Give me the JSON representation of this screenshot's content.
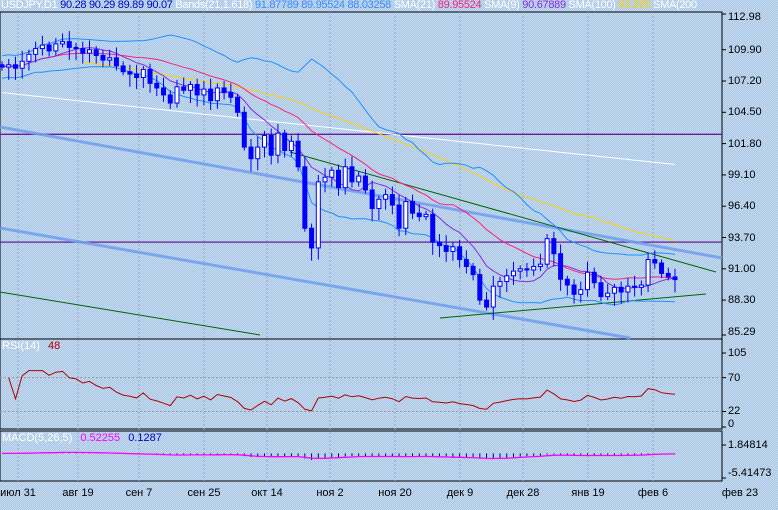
{
  "header": {
    "symbol": "USDJPY,D1",
    "open": "90.28",
    "high": "90.29",
    "low": "89.89",
    "close": "90.07",
    "bands_label": "Bands(21,1.618)",
    "bands_upper": "91.87789",
    "bands_mid": "89.95524",
    "bands_lower": "88.03258",
    "sma21_label": "SMA(21)",
    "sma21_value": "89.95524",
    "sma9_label": "SMA(9)",
    "sma9_value": "90.67889",
    "sma100_label": "SMA(100)",
    "sma100_value": "93.265",
    "sma200_label": "SMA(200"
  },
  "colors": {
    "candle": "#0000ff",
    "sma21": "#ff1f7a",
    "sma9": "#8a2be2",
    "sma100": "#ffd000",
    "sma200": "#ffffff",
    "bands": "#1e90ff",
    "hline": "#6a1a9a",
    "channel": "#6f9ff0",
    "trend": "#006400",
    "rsi": "#b00000",
    "macd": "#ff00ff",
    "hist": "#000080"
  },
  "chart_data": {
    "type": "candlestick",
    "title": "USDJPY,D1",
    "price_axis_ticks": [
      "112.98",
      "109.90",
      "107.20",
      "104.50",
      "101.80",
      "99.10",
      "96.40",
      "93.70",
      "91.00",
      "88.30",
      "85.29"
    ],
    "ylim": [
      85.29,
      112.98
    ],
    "date_ticks": [
      "июл 31",
      "авг 19",
      "сен 7",
      "сен 25",
      "окт 14",
      "ноя 2",
      "ноя 20",
      "дек 9",
      "дек 28",
      "янв 19",
      "фев 6",
      "фев 23"
    ],
    "horizontal_levels": [
      102.6,
      93.3
    ],
    "closes": [
      108.4,
      108.6,
      108.3,
      108.9,
      109.5,
      110.0,
      110.3,
      109.8,
      110.4,
      110.6,
      110.1,
      110.0,
      109.6,
      109.9,
      109.4,
      109.0,
      109.2,
      108.5,
      108.0,
      107.8,
      107.5,
      108.2,
      107.0,
      106.6,
      106.0,
      105.3,
      106.7,
      106.4,
      106.9,
      106.0,
      106.5,
      105.5,
      106.6,
      106.2,
      105.8,
      104.5,
      101.5,
      100.5,
      101.5,
      102.5,
      100.8,
      102.7,
      101.2,
      102.0,
      99.8,
      94.5,
      92.8,
      98.5,
      98.9,
      99.5,
      98.0,
      99.8,
      98.5,
      99.0,
      97.8,
      96.2,
      97.0,
      97.4,
      96.5,
      94.5,
      96.8,
      95.8,
      95.5,
      95.7,
      93.3,
      93.0,
      92.5,
      92.9,
      91.8,
      91.2,
      90.5,
      88.3,
      87.7,
      89.5,
      89.9,
      90.4,
      90.8,
      91.0,
      90.9,
      91.2,
      91.4,
      93.6,
      92.3,
      90.1,
      89.6,
      88.8,
      89.2,
      90.7,
      89.8,
      88.6,
      88.9,
      89.4,
      89.0,
      89.5,
      89.4,
      89.6,
      91.8,
      91.5,
      90.6,
      90.3,
      90.07
    ],
    "rsi": {
      "label": "RSI(14)",
      "value": "48",
      "ticks": [
        "105",
        "70",
        "22",
        "0"
      ],
      "ylim": [
        0,
        105
      ],
      "levels": [
        70,
        22
      ]
    },
    "macd": {
      "label": "MACD(5,26,5)",
      "main": "0.52255",
      "signal": "0.1287",
      "ticks": [
        "1.84814",
        "-5.41473"
      ],
      "ylim": [
        -5.41473,
        1.84814
      ]
    }
  }
}
